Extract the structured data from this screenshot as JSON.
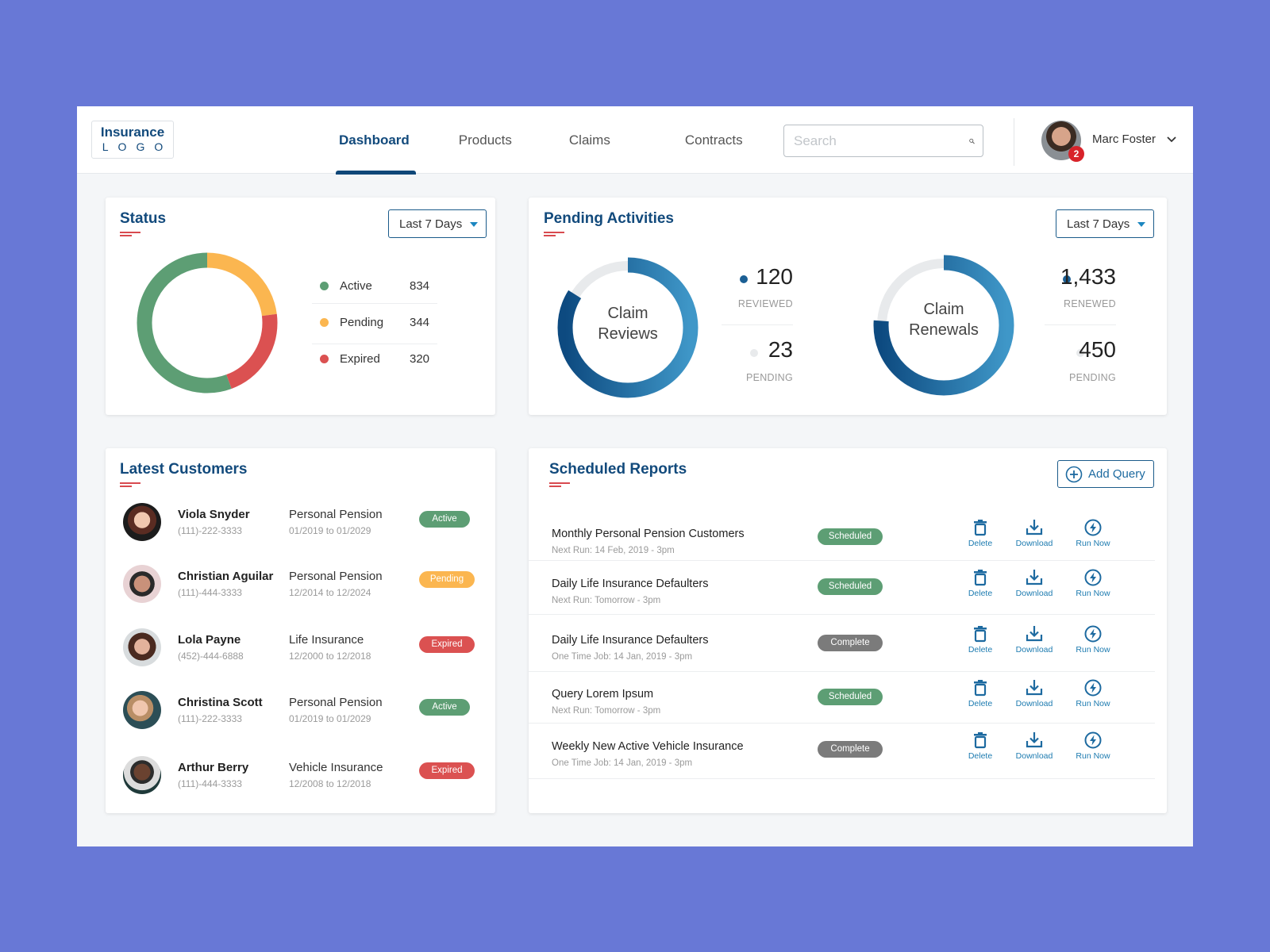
{
  "header": {
    "logo": {
      "line1": "Insurance",
      "line2": "LOGO"
    },
    "nav": [
      {
        "label": "Dashboard",
        "active": true
      },
      {
        "label": "Products",
        "active": false
      },
      {
        "label": "Claims",
        "active": false
      },
      {
        "label": "Contracts",
        "active": false
      }
    ],
    "search": {
      "placeholder": "Search",
      "value": "",
      "icon": "search-icon"
    },
    "user": {
      "name": "Marc Foster",
      "notification_count": "2",
      "icon": "chevron-down-icon"
    }
  },
  "status_card": {
    "title": "Status",
    "range": "Last 7 Days",
    "legend": [
      {
        "label": "Active",
        "value": "834",
        "color": "#5d9e74"
      },
      {
        "label": "Pending",
        "value": "344",
        "color": "#fbb650"
      },
      {
        "label": "Expired",
        "value": "320",
        "color": "#db5151"
      }
    ]
  },
  "pending_card": {
    "title": "Pending Activities",
    "range": "Last 7 Days",
    "reviews": {
      "label_line1": "Claim",
      "label_line2": "Reviews",
      "primary_value": "120",
      "primary_label": "REVIEWED",
      "secondary_value": "23",
      "secondary_label": "PENDING"
    },
    "renewals": {
      "label_line1": "Claim",
      "label_line2": "Renewals",
      "primary_value": "1,433",
      "primary_label": "RENEWED",
      "secondary_value": "450",
      "secondary_label": "PENDING"
    },
    "colors": {
      "primary": "#1b5f94",
      "secondary": "#e8eaec"
    }
  },
  "customers_card": {
    "title": "Latest Customers",
    "customers": [
      {
        "name": "Viola Snyder",
        "phone": "(111)-222-3333",
        "product": "Personal Pension",
        "dates": "01/2019 to 01/2029",
        "status": "Active"
      },
      {
        "name": "Christian Aguilar",
        "phone": "(111)-444-3333",
        "product": "Personal Pension",
        "dates": "12/2014 to 12/2024",
        "status": "Pending"
      },
      {
        "name": "Lola Payne",
        "phone": "(452)-444-6888",
        "product": "Life Insurance",
        "dates": "12/2000 to 12/2018",
        "status": "Expired"
      },
      {
        "name": "Christina Scott",
        "phone": "(111)-222-3333",
        "product": "Personal Pension",
        "dates": "01/2019 to 01/2029",
        "status": "Active"
      },
      {
        "name": "Arthur Berry",
        "phone": "(111)-444-3333",
        "product": "Vehicle Insurance",
        "dates": "12/2008 to 12/2018",
        "status": "Expired"
      }
    ],
    "status_colors": {
      "Active": "#5d9e74",
      "Pending": "#fbb650",
      "Expired": "#db5151"
    }
  },
  "reports_card": {
    "title": "Scheduled Reports",
    "add_label": "Add Query",
    "actions": {
      "delete": "Delete",
      "download": "Download",
      "run": "Run Now"
    },
    "reports": [
      {
        "title": "Monthly Personal Pension Customers",
        "sub": "Next Run: 14 Feb, 2019 - 3pm",
        "status": "Scheduled"
      },
      {
        "title": "Daily Life Insurance Defaulters",
        "sub": "Next Run: Tomorrow -  3pm",
        "status": "Scheduled"
      },
      {
        "title": "Daily Life Insurance Defaulters",
        "sub": "One Time Job: 14 Jan, 2019 - 3pm",
        "status": "Complete"
      },
      {
        "title": "Query Lorem Ipsum",
        "sub": "Next Run: Tomorrow -  3pm",
        "status": "Scheduled"
      },
      {
        "title": "Weekly New Active Vehicle Insurance",
        "sub": "One Time Job: 14 Jan, 2019 - 3pm",
        "status": "Complete"
      }
    ],
    "status_colors": {
      "Scheduled": "#5d9e74",
      "Complete": "#7b7b7b"
    }
  }
}
